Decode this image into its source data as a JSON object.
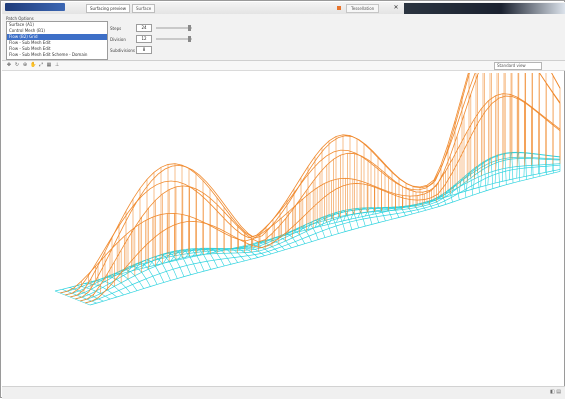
{
  "window": {
    "tabs": [
      "Surfacing preview",
      "Surface"
    ],
    "status_pill": "Tessellation"
  },
  "panel": {
    "title": "Patch Options",
    "list_items": [
      "Surface (A1)",
      "Control Mesh (B1)",
      "Flow (B2) Grid",
      "Flow - Sub Mesh Edit",
      "Flow - Sub Mesh Edit",
      "Flow - Sub Mesh Edit Scheme - Domain"
    ],
    "selected_index": 2,
    "controls": [
      {
        "label": "Steps",
        "value": "24"
      },
      {
        "label": "Division",
        "value": "12"
      },
      {
        "label": "Subdivisions",
        "value": "8"
      }
    ]
  },
  "toolbar": {
    "tools": [
      "move-icon",
      "rotate-icon",
      "zoom-icon",
      "pan-icon",
      "fit-icon",
      "grid-icon",
      "axes-icon"
    ],
    "view_select": "Standard view"
  },
  "viewport": {
    "colors": {
      "top": "#f08a2e",
      "bottom": "#2ed3df"
    }
  },
  "statusbar": {
    "icons": "◧ ▤"
  }
}
